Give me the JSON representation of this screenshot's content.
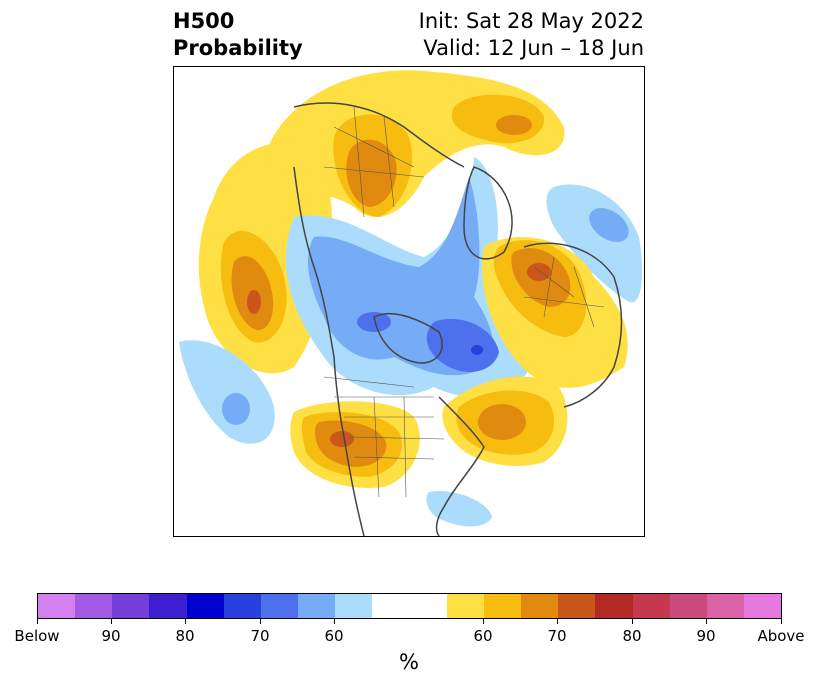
{
  "title": {
    "left_line1": "H500",
    "left_line2": "Probability",
    "right_line1": "Init: Sat 28 May 2022",
    "right_line2": "Valid: 12 Jun – 18 Jun"
  },
  "map": {
    "projection": "north-polar",
    "region": "Northern Hemisphere (North America centered)"
  },
  "colorbar": {
    "colors": [
      "#d580f0",
      "#a35be6",
      "#7440d9",
      "#3d1fd1",
      "#0000d0",
      "#2740de",
      "#4d70ec",
      "#76acf5",
      "#abdcfb",
      "#ffffff",
      "#ffffff",
      "#ffe044",
      "#f6bc0f",
      "#e08a10",
      "#c9571b",
      "#b32a24",
      "#c5394e",
      "#cb4c7c",
      "#d963a9",
      "#e679e0"
    ],
    "tick_labels": [
      "Below",
      "90",
      "80",
      "70",
      "60",
      "60",
      "70",
      "80",
      "90",
      "Above"
    ],
    "unit_label": "%"
  }
}
